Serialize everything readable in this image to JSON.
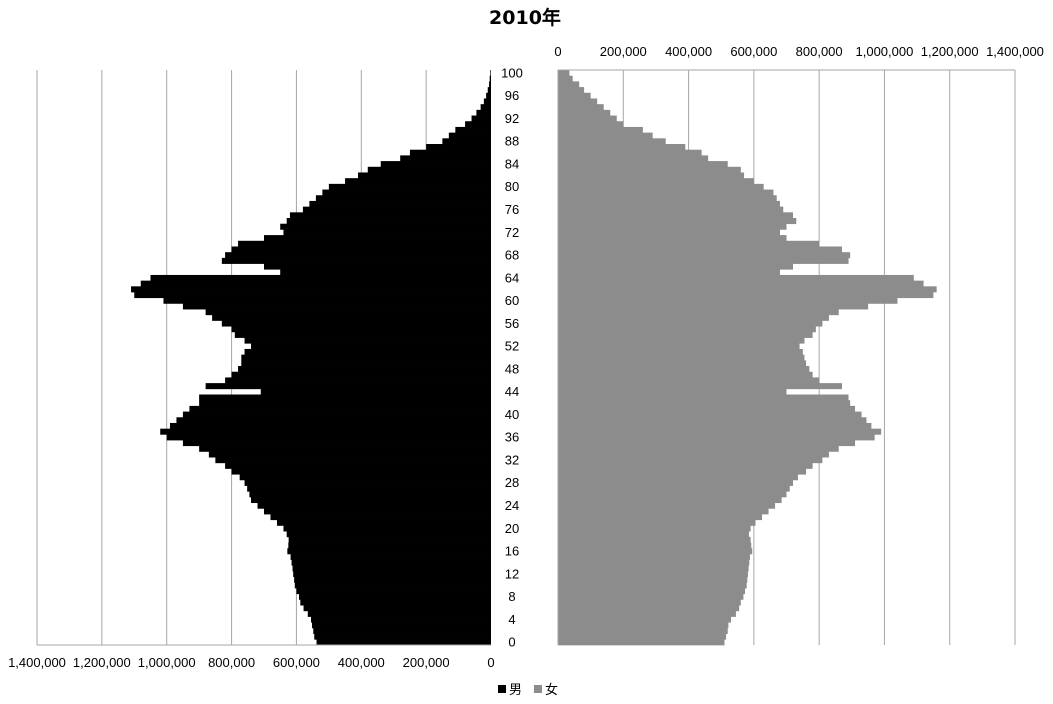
{
  "chart_data": {
    "type": "bar",
    "subtype": "population-pyramid",
    "title": "2010年",
    "orientation": "horizontal",
    "age_tick_labels": [
      "0",
      "4",
      "8",
      "12",
      "16",
      "20",
      "24",
      "28",
      "32",
      "36",
      "40",
      "44",
      "48",
      "52",
      "56",
      "60",
      "64",
      "68",
      "72",
      "76",
      "80",
      "84",
      "88",
      "92",
      "96",
      "100"
    ],
    "x_tick_labels": [
      "0",
      "200,000",
      "400,000",
      "600,000",
      "800,000",
      "1,000,000",
      "1,200,000",
      "1,400,000"
    ],
    "xlim": [
      0,
      1400000
    ],
    "grid": true,
    "legend_position": "bottom",
    "categories": [
      0,
      1,
      2,
      3,
      4,
      5,
      6,
      7,
      8,
      9,
      10,
      11,
      12,
      13,
      14,
      15,
      16,
      17,
      18,
      19,
      20,
      21,
      22,
      23,
      24,
      25,
      26,
      27,
      28,
      29,
      30,
      31,
      32,
      33,
      34,
      35,
      36,
      37,
      38,
      39,
      40,
      41,
      42,
      43,
      44,
      45,
      46,
      47,
      48,
      49,
      50,
      51,
      52,
      53,
      54,
      55,
      56,
      57,
      58,
      59,
      60,
      61,
      62,
      63,
      64,
      65,
      66,
      67,
      68,
      69,
      70,
      71,
      72,
      73,
      74,
      75,
      76,
      77,
      78,
      79,
      80,
      81,
      82,
      83,
      84,
      85,
      86,
      87,
      88,
      89,
      90,
      91,
      92,
      93,
      94,
      95,
      96,
      97,
      98,
      99,
      100
    ],
    "series": [
      {
        "name": "男",
        "color": "#000000",
        "side": "left",
        "values": [
          538000,
          545000,
          548000,
          552000,
          555000,
          565000,
          578000,
          588000,
          592000,
          600000,
          605000,
          607000,
          610000,
          612000,
          615000,
          618000,
          628000,
          625000,
          624000,
          630000,
          640000,
          660000,
          680000,
          700000,
          720000,
          740000,
          745000,
          752000,
          760000,
          775000,
          800000,
          820000,
          850000,
          870000,
          900000,
          950000,
          1000000,
          1020000,
          990000,
          970000,
          950000,
          930000,
          900000,
          900000,
          710000,
          880000,
          820000,
          800000,
          780000,
          770000,
          770000,
          760000,
          740000,
          760000,
          790000,
          800000,
          830000,
          860000,
          880000,
          950000,
          1010000,
          1100000,
          1110000,
          1080000,
          1050000,
          650000,
          700000,
          830000,
          820000,
          800000,
          780000,
          700000,
          640000,
          650000,
          630000,
          620000,
          580000,
          560000,
          540000,
          520000,
          500000,
          450000,
          410000,
          380000,
          340000,
          280000,
          250000,
          200000,
          150000,
          130000,
          110000,
          80000,
          60000,
          45000,
          32000,
          22000,
          15000,
          10000,
          6000,
          4000,
          2000
        ]
      },
      {
        "name": "女",
        "color": "#8c8c8c",
        "side": "right",
        "values": [
          510000,
          515000,
          520000,
          522000,
          530000,
          545000,
          555000,
          560000,
          568000,
          573000,
          578000,
          580000,
          582000,
          584000,
          586000,
          588000,
          595000,
          592000,
          590000,
          585000,
          590000,
          605000,
          625000,
          645000,
          665000,
          685000,
          700000,
          710000,
          720000,
          735000,
          760000,
          780000,
          810000,
          830000,
          860000,
          910000,
          970000,
          990000,
          960000,
          945000,
          930000,
          910000,
          895000,
          890000,
          700000,
          870000,
          800000,
          780000,
          770000,
          760000,
          755000,
          750000,
          740000,
          755000,
          780000,
          790000,
          810000,
          830000,
          860000,
          950000,
          1040000,
          1150000,
          1160000,
          1120000,
          1090000,
          680000,
          720000,
          890000,
          895000,
          870000,
          800000,
          700000,
          680000,
          700000,
          730000,
          720000,
          690000,
          680000,
          670000,
          660000,
          630000,
          600000,
          570000,
          560000,
          520000,
          460000,
          440000,
          390000,
          330000,
          290000,
          260000,
          200000,
          180000,
          160000,
          140000,
          120000,
          100000,
          80000,
          65000,
          45000,
          35000
        ]
      }
    ]
  }
}
